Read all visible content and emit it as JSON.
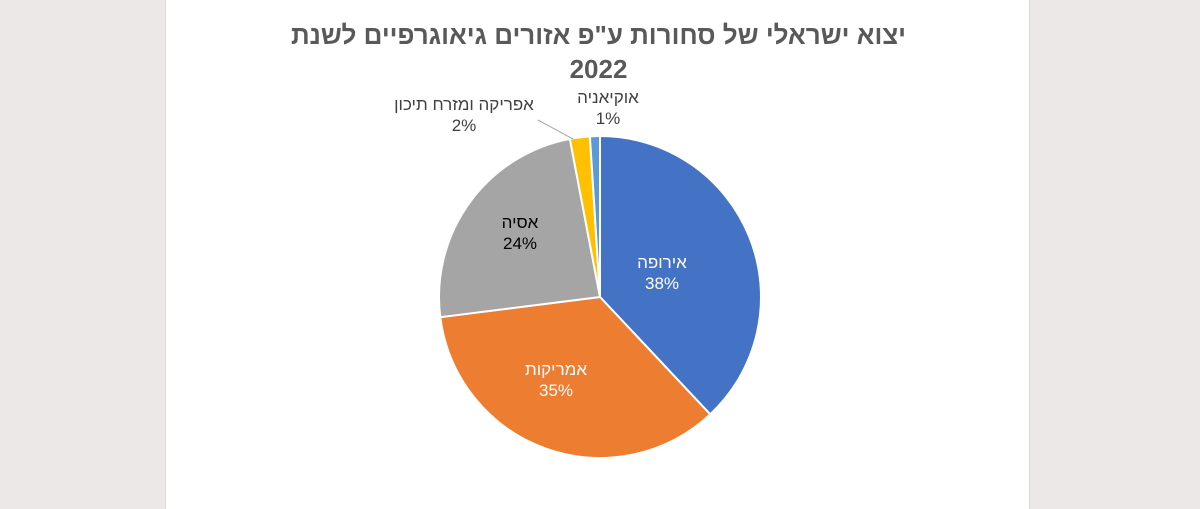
{
  "chart_data": {
    "type": "pie",
    "title_line1": "יצוא ישראלי של סחורות ע\"פ אזורים גיאוגרפיים לשנת",
    "title_line2": "2022",
    "slices": [
      {
        "name": "אירופה",
        "value": 38,
        "pct_label": "38%",
        "color": "#4472c4",
        "text_color": "#ffffff"
      },
      {
        "name": "אמריקות",
        "value": 35,
        "pct_label": "35%",
        "color": "#ed7d31",
        "text_color": "#ffffff"
      },
      {
        "name": "אסיה",
        "value": 24,
        "pct_label": "24%",
        "color": "#a5a5a5",
        "text_color": "#000000"
      },
      {
        "name": "אפריקה ומזרח תיכון",
        "value": 2,
        "pct_label": "2%",
        "color": "#ffc000",
        "text_color": "#404040"
      },
      {
        "name": "אוקיאניה",
        "value": 1,
        "pct_label": "1%",
        "color": "#5b9bd5",
        "text_color": "#404040"
      }
    ]
  }
}
